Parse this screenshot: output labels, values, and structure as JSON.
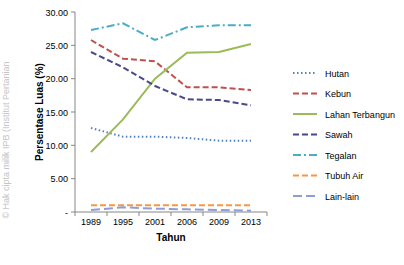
{
  "chart_data": {
    "type": "line",
    "x_label": "Tahun",
    "y_label": "Persentase Luas (%)",
    "annotations": [
      "© Hak cipta milik IPB (Institut Pertanian"
    ],
    "categories": [
      "1989",
      "1995",
      "2001",
      "2006",
      "2009",
      "2013"
    ],
    "ylim": [
      0,
      30
    ],
    "yticks": [
      {
        "value": 0,
        "label": "-"
      },
      {
        "value": 5,
        "label": "5.00"
      },
      {
        "value": 10,
        "label": "10.00"
      },
      {
        "value": 15,
        "label": "15.00"
      },
      {
        "value": 20,
        "label": "20.00"
      },
      {
        "value": 25,
        "label": "25.00"
      },
      {
        "value": 30,
        "label": "30.00"
      }
    ],
    "grid": false,
    "legend": "right",
    "series": [
      {
        "name": "Hutan",
        "color": "#4f81bd",
        "line_style": "dotted",
        "values": [
          12.6,
          11.3,
          11.3,
          11.1,
          10.7,
          10.7
        ]
      },
      {
        "name": "Kebun",
        "color": "#c0504d",
        "line_style": "dashed",
        "values": [
          25.8,
          23.0,
          22.6,
          18.7,
          18.7,
          18.3
        ]
      },
      {
        "name": "Lahan Terbangun",
        "color": "#9bbb59",
        "line_style": "solid",
        "values": [
          9.0,
          13.9,
          20.0,
          23.9,
          24.0,
          25.2
        ]
      },
      {
        "name": "Sawah",
        "color": "#4a4a86",
        "line_style": "dashed",
        "values": [
          24.0,
          21.7,
          18.9,
          16.9,
          16.8,
          16.0
        ]
      },
      {
        "name": "Tegalan",
        "color": "#4bacc6",
        "line_style": "dashdot",
        "values": [
          27.3,
          28.3,
          25.8,
          27.7,
          28.0,
          28.0
        ]
      },
      {
        "name": "Tubuh Air",
        "color": "#f79646",
        "line_style": "dashed",
        "values": [
          1.0,
          1.0,
          1.0,
          1.0,
          1.0,
          1.0
        ]
      },
      {
        "name": "Lain-lain",
        "color": "#8e9ed4",
        "line_style": "longdash",
        "values": [
          0.3,
          0.7,
          0.5,
          0.4,
          0.3,
          0.2
        ]
      }
    ]
  }
}
